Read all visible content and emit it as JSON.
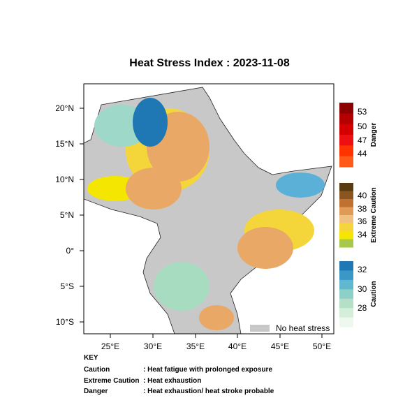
{
  "title": "Heat Stress Index : 2023-11-08",
  "map": {
    "x_labels": [
      "25°E",
      "30°E",
      "35°E",
      "40°E",
      "45°E",
      "50°E"
    ],
    "y_labels": [
      "20°N",
      "15°N",
      "10°N",
      "5°N",
      "0°",
      "5°S",
      "10°S"
    ],
    "legend": "No heat stress"
  },
  "colorbars": [
    {
      "label": "Danger",
      "ticks": [
        "53",
        "50",
        "47",
        "44"
      ]
    },
    {
      "label": "Extreme Caution",
      "ticks": [
        "40",
        "38",
        "36",
        "34"
      ]
    },
    {
      "label": "Caution",
      "ticks": [
        "32",
        "30",
        "28"
      ]
    }
  ],
  "key": {
    "heading": "KEY",
    "rows": [
      [
        "Caution",
        ": Heat fatigue with prolonged exposure"
      ],
      [
        "Extreme Caution",
        ": Heat exhaustion"
      ],
      [
        "Danger",
        ": Heat exhaustion/ heat stroke probable"
      ]
    ]
  }
}
